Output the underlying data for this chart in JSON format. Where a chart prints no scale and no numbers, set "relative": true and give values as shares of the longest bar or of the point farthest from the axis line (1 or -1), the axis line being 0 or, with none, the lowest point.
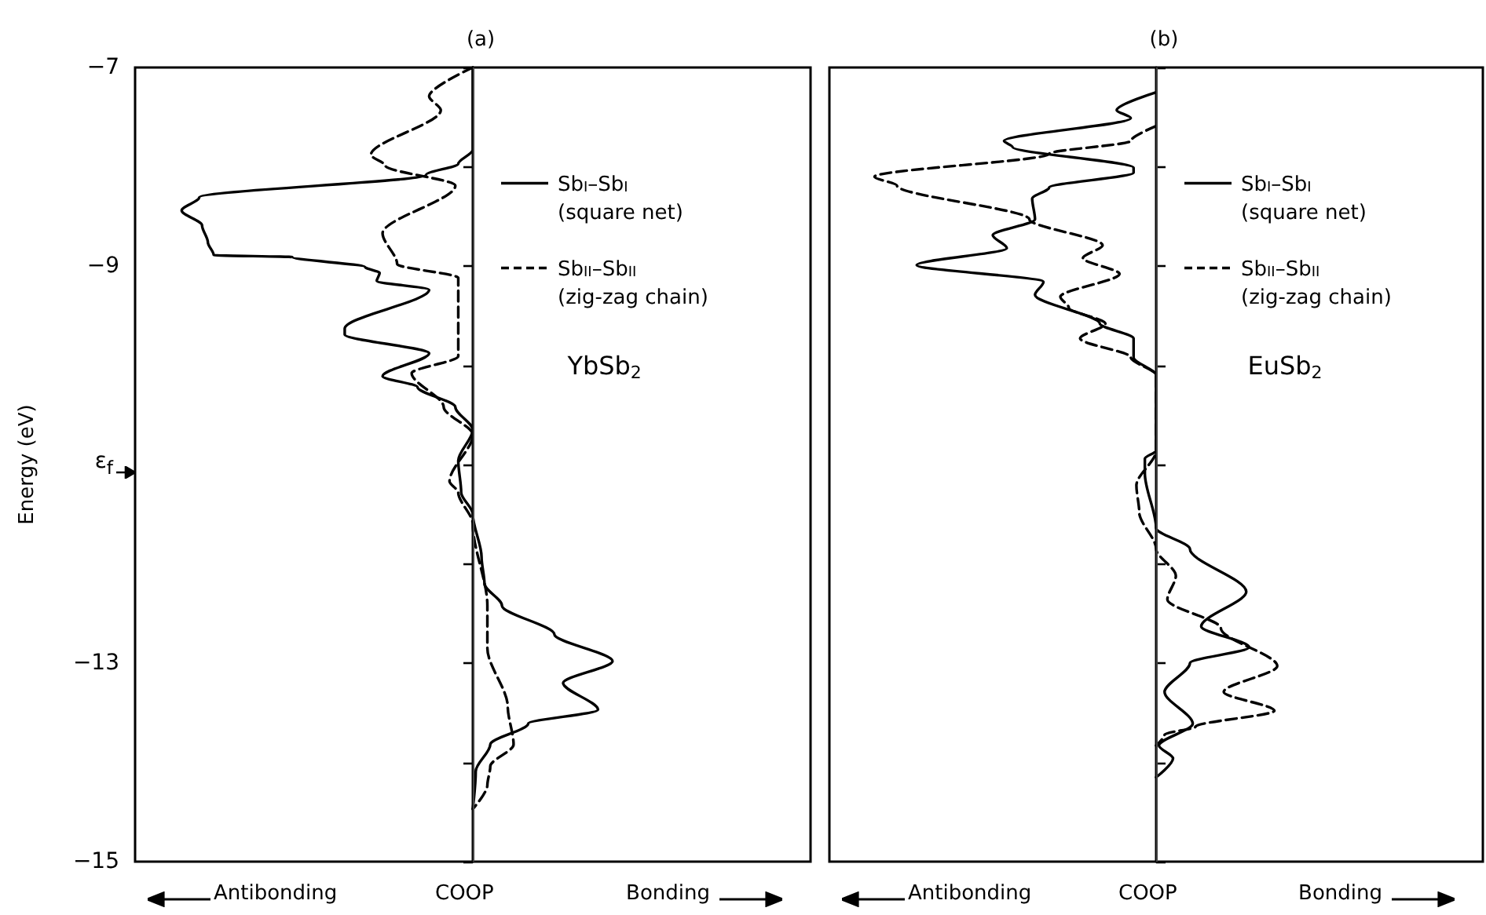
{
  "chart_data": [
    {
      "type": "line",
      "title": "(a)",
      "ylabel": "Energy (eV)",
      "xlabel": "COOP",
      "orientation": "horizontal",
      "relative": true,
      "ylim": [
        -15,
        -7
      ],
      "yticks": [
        -7,
        {
          "value": -8,
          "label": null
        },
        -9,
        {
          "value": -10,
          "label": null
        },
        {
          "value": -11,
          "label": "ε$_{f}$"
        },
        {
          "value": -12,
          "label": null
        },
        -13,
        {
          "value": -14,
          "label": null
        },
        -15
      ],
      "tick_labels": "y",
      "grid": false,
      "legend": "right",
      "marker": "none",
      "ref_lines": [
        {
          "axis": "x",
          "value": 0,
          "color": "#444444"
        }
      ],
      "annotations": [
        "YbSb$_{2}$",
        "Antibonding",
        "Bonding"
      ],
      "series": [
        {
          "name": "Sb$_{I}$–Sb$_{I}$\n(square net)",
          "color": "#000000",
          "line_style": "solid",
          "x": [
            -7,
            -7.83,
            -7.97,
            -8.08,
            -8.31,
            -8.44,
            -8.59,
            -8.76,
            -8.89,
            -8.91,
            -9.01,
            -9.07,
            -9.15,
            -9.24,
            -9.63,
            -9.69,
            -9.88,
            -10.11,
            -10.22,
            -10.42,
            -10.65,
            -10.96,
            -11.28,
            -11.5,
            -11.93,
            -12.2,
            -12.42,
            -12.71,
            -12.98,
            -13.2,
            -13.47,
            -13.61,
            -13.82,
            -14.09,
            -14.47
          ],
          "values": [
            0,
            0,
            -0.05,
            -0.16,
            -0.94,
            -1.0,
            -0.93,
            -0.91,
            -0.89,
            -0.62,
            -0.37,
            -0.32,
            -0.33,
            -0.15,
            -0.44,
            -0.44,
            -0.15,
            -0.31,
            -0.19,
            -0.06,
            0,
            -0.05,
            -0.04,
            0,
            0.03,
            0.04,
            0.1,
            0.28,
            0.48,
            0.31,
            0.43,
            0.19,
            0.06,
            0.01,
            0
          ]
        },
        {
          "name": "Sb$_{II}$–Sb$_{II}$\n(zig-zag chain)",
          "color": "#000000",
          "line_style": "dashed",
          "x": [
            -7,
            -7.29,
            -7.43,
            -7.88,
            -7.99,
            -8.19,
            -8.67,
            -8.98,
            -9.12,
            -9.91,
            -10.08,
            -10.42,
            -10.7,
            -11.17,
            -11.28,
            -11.6,
            -12.42,
            -12.85,
            -13.44,
            -13.82,
            -14.04,
            -14.23,
            -14.47
          ],
          "values": [
            0,
            -0.15,
            -0.11,
            -0.35,
            -0.3,
            -0.06,
            -0.31,
            -0.26,
            -0.05,
            -0.05,
            -0.21,
            -0.1,
            0,
            -0.08,
            -0.05,
            0,
            0.05,
            0.05,
            0.12,
            0.14,
            0.06,
            0.05,
            0
          ]
        }
      ]
    },
    {
      "type": "line",
      "title": "(b)",
      "xlabel": "COOP",
      "orientation": "horizontal",
      "relative": true,
      "ylim": [
        -15,
        -7
      ],
      "yticks": [
        -7,
        {
          "value": -8,
          "label": null
        },
        {
          "value": -9,
          "label": null
        },
        {
          "value": -10,
          "label": null
        },
        {
          "value": -11,
          "label": null
        },
        {
          "value": -12,
          "label": null
        },
        {
          "value": -13,
          "label": null
        },
        {
          "value": -14,
          "label": null
        },
        -15
      ],
      "tick_labels": false,
      "grid": false,
      "legend": "right",
      "marker": "none",
      "ref_lines": [
        {
          "axis": "x",
          "value": 0,
          "color": "#444444"
        }
      ],
      "annotations": [
        "EuSb$_{2}$",
        "Antibonding",
        "Bonding"
      ],
      "series": [
        {
          "name": "Sb$_{I}$–Sb$_{I}$\n(square net)",
          "color": "#000000",
          "line_style": "solid",
          "x": [
            -7.25,
            -7.43,
            -7.51,
            -7.74,
            -7.8,
            -8.01,
            -8.06,
            -8.21,
            -8.32,
            -8.53,
            -8.69,
            -8.82,
            -8.99,
            -9.16,
            -9.29,
            -9.58,
            -9.73,
            -9.92,
            -10.1,
            -10.86,
            -10.94,
            -11.09,
            -11.64,
            -11.85,
            -12.28,
            -12.63,
            -12.84,
            -13.0,
            -13.29,
            -13.61,
            -13.83,
            -13.96,
            -14.15
          ],
          "values": [
            0,
            -0.14,
            -0.09,
            -0.54,
            -0.51,
            -0.08,
            -0.08,
            -0.38,
            -0.44,
            -0.43,
            -0.58,
            -0.53,
            -0.85,
            -0.4,
            -0.43,
            -0.2,
            -0.08,
            -0.08,
            0,
            0,
            -0.04,
            -0.04,
            0,
            0.12,
            0.32,
            0.16,
            0.33,
            0.12,
            0.03,
            0.13,
            0.01,
            0.06,
            0
          ]
        },
        {
          "name": "Sb$_{II}$–Sb$_{II}$\n(zig-zag chain)",
          "color": "#000000",
          "line_style": "dashed",
          "x": [
            -7.59,
            -7.74,
            -7.87,
            -8.1,
            -8.19,
            -8.53,
            -8.79,
            -8.92,
            -9.08,
            -9.31,
            -9.42,
            -9.58,
            -9.73,
            -9.92,
            -10.1,
            -10.86,
            -11.21,
            -11.48,
            -11.85,
            -12.12,
            -12.36,
            -12.65,
            -13.03,
            -13.29,
            -13.48,
            -13.64,
            -13.72,
            -13.83
          ],
          "values": [
            0,
            -0.09,
            -0.38,
            -1.0,
            -0.92,
            -0.45,
            -0.19,
            -0.26,
            -0.13,
            -0.34,
            -0.31,
            -0.18,
            -0.27,
            -0.09,
            0,
            0,
            -0.07,
            -0.06,
            0,
            0.07,
            0.04,
            0.23,
            0.43,
            0.24,
            0.42,
            0.14,
            0.03,
            0
          ]
        }
      ]
    }
  ]
}
